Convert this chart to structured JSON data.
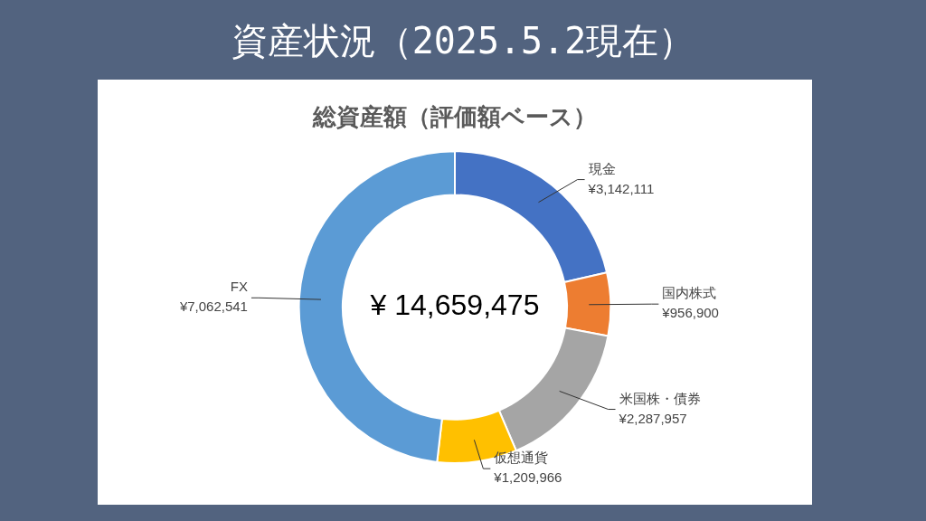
{
  "chart_data": {
    "type": "donut",
    "title": "資産状況（2025.5.2現在）",
    "subtitle": "総資産額（評価額ベース）",
    "categories": [
      "現金",
      "国内株式",
      "米国株・債券",
      "仮想通貨",
      "FX"
    ],
    "values": [
      3142111,
      956900,
      2287957,
      1209966,
      7062541
    ],
    "colors": [
      "#4472c4",
      "#ed7d31",
      "#a5a5a5",
      "#ffc000",
      "#5b9bd5"
    ],
    "value_labels": [
      "¥3,142,111",
      "¥956,900",
      "¥2,287,957",
      "¥1,209,966",
      "¥7,062,541"
    ],
    "annotations": [
      "¥ 14,659,475"
    ],
    "legend": false
  }
}
